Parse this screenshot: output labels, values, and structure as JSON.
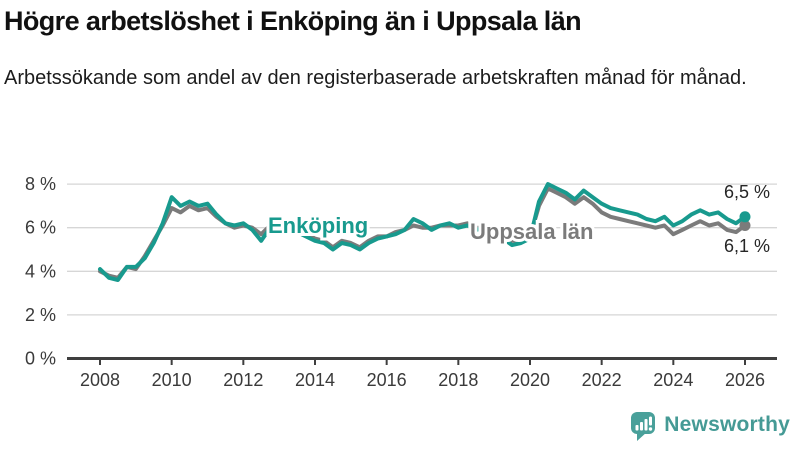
{
  "header": {
    "title": "Högre arbetslöshet i Enköping än i Uppsala län",
    "subtitle": "Arbetssökande som andel av den registerbaserade arbetskraften månad för månad."
  },
  "chart_data": {
    "type": "line",
    "x_start": 2008,
    "x_step": 0.25,
    "x_end": 2026,
    "xlabel": "",
    "ylabel": "",
    "ylim": [
      0,
      8.6
    ],
    "grid": "horizontal",
    "y_ticks": [
      0,
      2,
      4,
      6,
      8
    ],
    "y_tick_labels": [
      "0 %",
      "2 %",
      "4 %",
      "6 %",
      "8 %"
    ],
    "x_ticks": [
      2008,
      2010,
      2012,
      2014,
      2016,
      2018,
      2020,
      2022,
      2024,
      2026
    ],
    "x_tick_labels": [
      "2008",
      "2010",
      "2012",
      "2014",
      "2016",
      "2018",
      "2020",
      "2022",
      "2024",
      "2026"
    ],
    "legend_position": "inline-labels",
    "series": [
      {
        "name": "Uppsala län",
        "color": "#7b7b7b",
        "end_label": "6,1 %",
        "end_value": 6.1,
        "values": [
          4.0,
          3.8,
          3.7,
          4.2,
          4.1,
          4.7,
          5.4,
          6.1,
          6.9,
          6.7,
          7.0,
          6.8,
          6.9,
          6.5,
          6.2,
          6.0,
          6.1,
          6.0,
          5.7,
          6.1,
          6.1,
          6.0,
          5.9,
          5.7,
          5.5,
          5.4,
          5.1,
          5.4,
          5.3,
          5.1,
          5.4,
          5.6,
          5.6,
          5.8,
          5.9,
          6.1,
          6.0,
          6.0,
          6.1,
          6.1,
          6.1,
          6.2,
          6.0,
          6.0,
          5.8,
          5.6,
          5.4,
          5.4,
          5.6,
          7.0,
          7.8,
          7.6,
          7.4,
          7.1,
          7.4,
          7.1,
          6.7,
          6.5,
          6.4,
          6.3,
          6.2,
          6.1,
          6.0,
          6.1,
          5.7,
          5.9,
          6.1,
          6.3,
          6.1,
          6.2,
          5.9,
          5.8,
          6.1
        ]
      },
      {
        "name": "Enköping",
        "color": "#189a8e",
        "end_label": "6,5 %",
        "end_value": 6.5,
        "values": [
          4.1,
          3.7,
          3.6,
          4.2,
          4.2,
          4.6,
          5.3,
          6.2,
          7.4,
          7.0,
          7.2,
          7.0,
          7.1,
          6.6,
          6.2,
          6.1,
          6.2,
          5.9,
          5.4,
          6.0,
          6.0,
          5.9,
          5.8,
          5.6,
          5.4,
          5.3,
          5.0,
          5.3,
          5.2,
          5.0,
          5.3,
          5.5,
          5.6,
          5.7,
          5.9,
          6.4,
          6.2,
          5.9,
          6.1,
          6.2,
          6.0,
          6.1,
          5.9,
          6.0,
          5.8,
          5.5,
          5.2,
          5.3,
          5.5,
          7.2,
          8.0,
          7.8,
          7.6,
          7.3,
          7.7,
          7.4,
          7.1,
          6.9,
          6.8,
          6.7,
          6.6,
          6.4,
          6.3,
          6.5,
          6.1,
          6.3,
          6.6,
          6.8,
          6.6,
          6.7,
          6.4,
          6.2,
          6.5
        ]
      }
    ],
    "colors": {
      "grid": "#d6d6d6",
      "axis": "#3f3f3f",
      "tick_text": "#3a3a3a",
      "value_label_text": "#262626"
    }
  },
  "footer": {
    "brand": "Newsworthy",
    "brand_color": "#459a95",
    "logo_icon": "bar-chart-speech-bubble-icon"
  }
}
